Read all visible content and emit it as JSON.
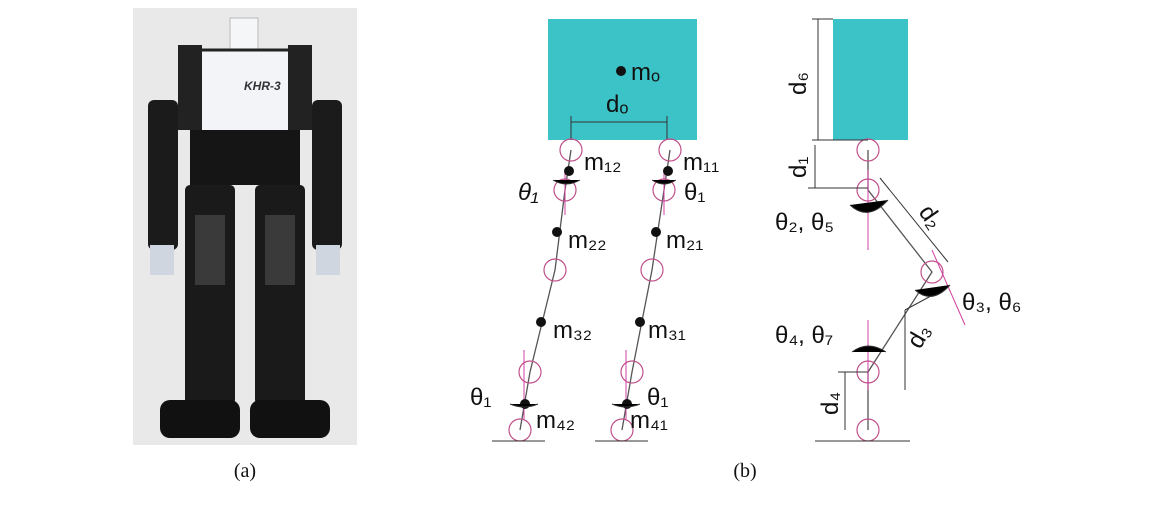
{
  "panel_a": {
    "robot_label": "KHR-3",
    "caption": "(a)"
  },
  "panel_b": {
    "caption": "(b)",
    "front_view": {
      "body_mass": "mₒ",
      "hip_width": "dₒ",
      "masses": [
        "m₁₂",
        "m₁₁",
        "m₂₂",
        "m₂₁",
        "m₃₂",
        "m₃₁",
        "m₄₂",
        "m₄₁"
      ],
      "angles": [
        "θ₁",
        "θ₁",
        "θ₁",
        "θ₁"
      ]
    },
    "side_view": {
      "lengths": [
        "d₆",
        "d₁",
        "d₂",
        "d₃",
        "d₄"
      ],
      "angles": [
        "θ₂, θ₅",
        "θ₃, θ₆",
        "θ₄, θ₇"
      ]
    }
  }
}
